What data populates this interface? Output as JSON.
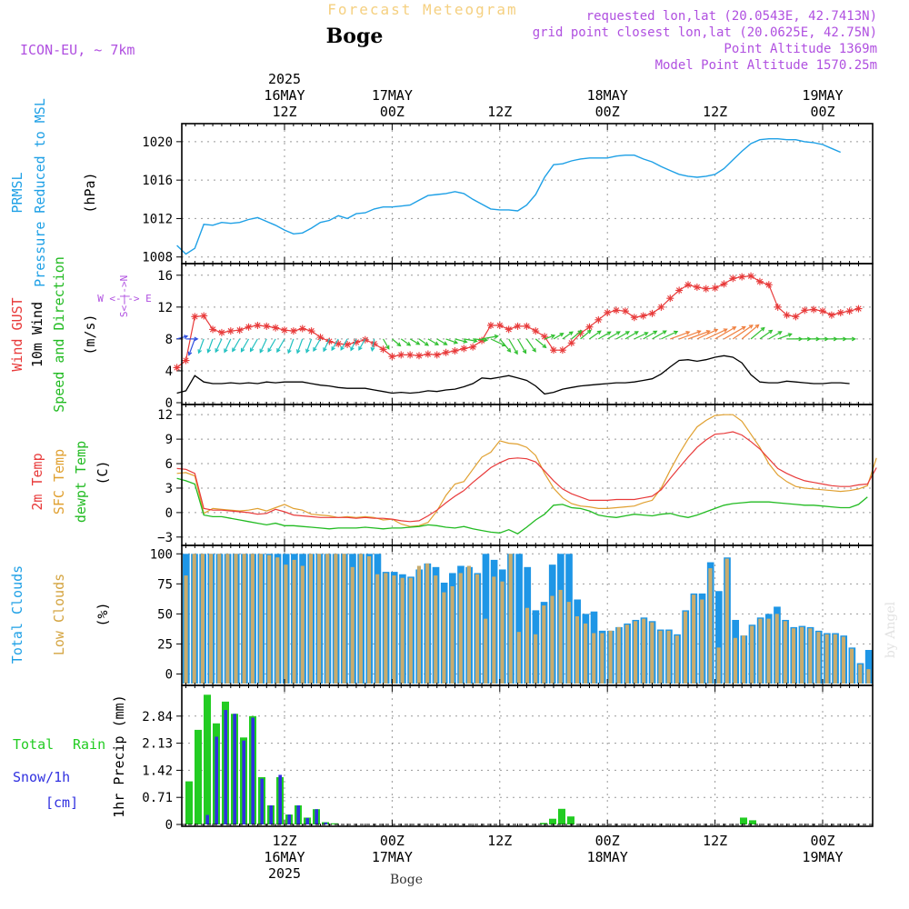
{
  "header": {
    "product": "Forecast Meteogram",
    "location": "Boge",
    "model": "ICON-EU, ~ 7km",
    "requested": "requested lon,lat (20.0543E, 42.7413N)",
    "gridpoint": "grid point closest lon,lat (20.0625E, 42.75N)",
    "point_altitude": "Point Altitude 1369m",
    "model_altitude": "Model Point Altitude 1570.25m",
    "footer": "Boge",
    "watermark": "by Angel"
  },
  "time_axis": {
    "top_labels": [
      {
        "hour": 12,
        "lines": [
          "2025",
          "16MAY",
          "12Z"
        ]
      },
      {
        "hour": 24,
        "lines": [
          "17MAY",
          "00Z"
        ]
      },
      {
        "hour": 36,
        "lines": [
          "12Z"
        ]
      },
      {
        "hour": 48,
        "lines": [
          "18MAY",
          "00Z"
        ]
      },
      {
        "hour": 60,
        "lines": [
          "12Z"
        ]
      },
      {
        "hour": 72,
        "lines": [
          "19MAY",
          "00Z"
        ]
      }
    ],
    "bottom_labels": [
      {
        "hour": 12,
        "lines": [
          "12Z",
          "16MAY",
          "2025"
        ]
      },
      {
        "hour": 24,
        "lines": [
          "00Z",
          "17MAY"
        ]
      },
      {
        "hour": 36,
        "lines": [
          "12Z"
        ]
      },
      {
        "hour": 48,
        "lines": [
          "00Z",
          "18MAY"
        ]
      },
      {
        "hour": 60,
        "lines": [
          "12Z"
        ]
      },
      {
        "hour": 72,
        "lines": [
          "00Z",
          "19MAY"
        ]
      }
    ]
  },
  "panels": {
    "pressure": {
      "label1": "PRMSL",
      "label2": "Pressure Reduced to MSL",
      "unit": "(hPa)"
    },
    "wind": {
      "label1": "Wind GUST",
      "label2": "10m Wind",
      "label3": "Speed and Direction",
      "unit": "(m/s)",
      "compass_ew": "W <-|-> E",
      "compass_ns": "S<-|->N"
    },
    "temp": {
      "label1": "2m Temp",
      "label2": "SFC Temp",
      "label3": "dewpt Temp",
      "unit": "(C)"
    },
    "clouds": {
      "label1": "Total Clouds",
      "label2": "Low Clouds",
      "unit": "(%)"
    },
    "precip": {
      "label1": "Total",
      "label1b": "Rain",
      "label2": "Snow/1h",
      "label3": "[cm]",
      "unit": "1hr Precip (mm)"
    }
  },
  "colors": {
    "pressure": "#1ea0e6",
    "gust": "#e83a3a",
    "wind": "#000000",
    "t2m": "#e83a3a",
    "tsfc": "#e0a030",
    "dewpt": "#22bb22",
    "total_clouds": "#1e96e6",
    "low_clouds": "#c8ac6e",
    "rain": "#22cc22",
    "snow": "#3030e0",
    "header_orange": "#f5d080",
    "header_purple": "#b050e0"
  },
  "chart_data": [
    {
      "type": "line",
      "title": "PRMSL Pressure Reduced to MSL",
      "ylabel": "(hPa)",
      "ylim": [
        1007.5,
        1021.5
      ],
      "yticks": [
        1008,
        1012,
        1016,
        1020
      ],
      "x_start_hour": 0,
      "x_step_hours": 1,
      "series": [
        {
          "name": "PRMSL",
          "values": [
            1009.2,
            1008.3,
            1008.9,
            1011.4,
            1011.3,
            1011.6,
            1011.5,
            1011.6,
            1011.9,
            1012.1,
            1011.7,
            1011.3,
            1010.8,
            1010.4,
            1010.5,
            1011.0,
            1011.6,
            1011.8,
            1012.3,
            1012.0,
            1012.5,
            1012.6,
            1013.0,
            1013.2,
            1013.2,
            1013.3,
            1013.4,
            1013.9,
            1014.4,
            1014.5,
            1014.6,
            1014.8,
            1014.6,
            1014.0,
            1013.5,
            1013.0,
            1012.9,
            1012.9,
            1012.8,
            1013.4,
            1014.5,
            1016.3,
            1017.6,
            1017.7,
            1018.0,
            1018.2,
            1018.3,
            1018.3,
            1018.3,
            1018.5,
            1018.6,
            1018.6,
            1018.2,
            1017.9,
            1017.4,
            1017.0,
            1016.6,
            1016.4,
            1016.3,
            1016.4,
            1016.6,
            1017.2,
            1018.1,
            1019.0,
            1019.8,
            1020.2,
            1020.3,
            1020.3,
            1020.2,
            1020.2,
            1020.0,
            1019.9,
            1019.7,
            1019.3,
            1018.9
          ]
        }
      ]
    },
    {
      "type": "line",
      "title": "Wind GUST / 10m Wind Speed and Direction",
      "ylabel": "(m/s)",
      "ylim": [
        0,
        17
      ],
      "yticks": [
        0,
        4,
        8,
        12,
        16
      ],
      "x_start_hour": 0,
      "x_step_hours": 1,
      "series": [
        {
          "name": "Wind GUST",
          "values": [
            4.4,
            5.3,
            10.8,
            10.9,
            9.2,
            8.8,
            9.0,
            9.1,
            9.5,
            9.7,
            9.6,
            9.4,
            9.1,
            9.0,
            9.3,
            9.0,
            8.2,
            7.7,
            7.4,
            7.3,
            7.6,
            7.9,
            7.4,
            6.7,
            5.8,
            6.0,
            6.0,
            5.9,
            6.1,
            6.0,
            6.3,
            6.5,
            6.8,
            7.0,
            7.8,
            9.7,
            9.7,
            9.2,
            9.6,
            9.6,
            9.0,
            8.3,
            6.6,
            6.6,
            7.5,
            8.7,
            9.5,
            10.4,
            11.3,
            11.6,
            11.5,
            10.7,
            10.9,
            11.2,
            12.0,
            13.1,
            14.1,
            14.8,
            14.5,
            14.3,
            14.4,
            14.9,
            15.6,
            15.8,
            15.9,
            15.2,
            14.8,
            12.0,
            11.0,
            10.8,
            11.6,
            11.7,
            11.5,
            11.0,
            11.3,
            11.5,
            11.8
          ]
        },
        {
          "name": "10m Wind",
          "values": [
            1.2,
            1.5,
            3.4,
            2.6,
            2.4,
            2.4,
            2.5,
            2.4,
            2.5,
            2.4,
            2.6,
            2.5,
            2.6,
            2.6,
            2.6,
            2.4,
            2.2,
            2.1,
            1.9,
            1.8,
            1.8,
            1.8,
            1.6,
            1.4,
            1.2,
            1.3,
            1.2,
            1.3,
            1.5,
            1.4,
            1.6,
            1.7,
            2.0,
            2.4,
            3.1,
            3.0,
            3.2,
            3.4,
            3.1,
            2.8,
            2.1,
            1.1,
            1.3,
            1.7,
            1.9,
            2.1,
            2.2,
            2.3,
            2.4,
            2.5,
            2.5,
            2.6,
            2.8,
            3.0,
            3.6,
            4.5,
            5.3,
            5.4,
            5.2,
            5.4,
            5.7,
            5.9,
            5.7,
            5.0,
            3.5,
            2.6,
            2.5,
            2.5,
            2.7,
            2.6,
            2.5,
            2.4,
            2.4,
            2.5,
            2.5,
            2.4
          ]
        }
      ]
    },
    {
      "type": "line",
      "title": "2m Temp / SFC Temp / dewpt Temp",
      "ylabel": "(C)",
      "ylim": [
        -3.8,
        12.8
      ],
      "yticks": [
        -3,
        0,
        3,
        6,
        9,
        12
      ],
      "x_start_hour": 0,
      "x_step_hours": 1,
      "series": [
        {
          "name": "2m Temp",
          "values": [
            5.4,
            5.3,
            4.8,
            0.5,
            0.3,
            0.3,
            0.2,
            0.1,
            0.0,
            -0.2,
            -0.1,
            0.4,
            0.1,
            -0.3,
            -0.4,
            -0.5,
            -0.6,
            -0.6,
            -0.6,
            -0.6,
            -0.7,
            -0.6,
            -0.7,
            -0.7,
            -0.8,
            -1.0,
            -1.1,
            -1.0,
            -0.4,
            0.3,
            1.2,
            2.0,
            2.7,
            3.7,
            4.6,
            5.5,
            6.1,
            6.6,
            6.7,
            6.6,
            6.2,
            5.1,
            3.9,
            2.9,
            2.3,
            1.9,
            1.5,
            1.5,
            1.5,
            1.6,
            1.6,
            1.6,
            1.8,
            2.0,
            2.8,
            4.2,
            5.5,
            6.8,
            8.0,
            8.9,
            9.6,
            9.7,
            9.9,
            9.5,
            8.7,
            7.8,
            6.6,
            5.4,
            4.8,
            4.3,
            3.9,
            3.7,
            3.5,
            3.3,
            3.2,
            3.2,
            3.4,
            3.5,
            5.5
          ]
        },
        {
          "name": "SFC Temp",
          "values": [
            4.8,
            4.9,
            4.5,
            -0.1,
            0.5,
            0.4,
            0.3,
            0.2,
            0.3,
            0.5,
            0.2,
            0.6,
            1.0,
            0.5,
            0.3,
            -0.2,
            -0.3,
            -0.4,
            -0.6,
            -0.5,
            -0.6,
            -0.5,
            -0.6,
            -0.9,
            -0.8,
            -1.4,
            -1.7,
            -1.6,
            -1.2,
            0.2,
            2.1,
            3.5,
            3.8,
            5.3,
            6.8,
            7.4,
            8.8,
            8.5,
            8.4,
            8.0,
            7.0,
            4.8,
            3.0,
            1.8,
            1.1,
            0.8,
            0.7,
            0.5,
            0.5,
            0.6,
            0.7,
            0.8,
            1.2,
            1.5,
            3.0,
            5.2,
            7.2,
            9.0,
            10.5,
            11.3,
            11.9,
            12.0,
            12.0,
            11.2,
            9.6,
            8.0,
            6.0,
            4.6,
            3.8,
            3.2,
            3.0,
            2.9,
            2.8,
            2.7,
            2.6,
            2.7,
            2.9,
            3.3,
            6.7
          ]
        },
        {
          "name": "dewpt Temp",
          "values": [
            4.2,
            3.9,
            3.5,
            -0.3,
            -0.5,
            -0.5,
            -0.7,
            -0.9,
            -1.1,
            -1.3,
            -1.5,
            -1.3,
            -1.6,
            -1.6,
            -1.7,
            -1.8,
            -1.9,
            -2.0,
            -1.9,
            -1.9,
            -1.9,
            -1.8,
            -1.9,
            -2.0,
            -1.9,
            -1.9,
            -1.8,
            -1.7,
            -1.5,
            -1.6,
            -1.8,
            -1.9,
            -1.7,
            -2.0,
            -2.2,
            -2.4,
            -2.5,
            -2.1,
            -2.6,
            -1.8,
            -0.9,
            -0.2,
            0.9,
            1.0,
            0.6,
            0.5,
            0.2,
            -0.3,
            -0.5,
            -0.6,
            -0.4,
            -0.2,
            -0.3,
            -0.4,
            -0.2,
            -0.1,
            -0.4,
            -0.6,
            -0.3,
            0.1,
            0.5,
            0.9,
            1.1,
            1.2,
            1.3,
            1.3,
            1.3,
            1.2,
            1.1,
            1.0,
            0.9,
            0.9,
            0.8,
            0.7,
            0.6,
            0.6,
            1.0,
            1.9
          ]
        }
      ]
    },
    {
      "type": "bar",
      "title": "Total Clouds / Low Clouds",
      "ylabel": "(%)",
      "ylim": [
        -8,
        104
      ],
      "yticks": [
        0,
        25,
        50,
        75,
        100
      ],
      "x_start_hour": 0,
      "x_step_hours": 1,
      "series": [
        {
          "name": "Total Clouds",
          "values": [
            100,
            100,
            100,
            100,
            100,
            100,
            100,
            100,
            100,
            100,
            100,
            100,
            100,
            100,
            100,
            100,
            100,
            100,
            100,
            100,
            100,
            100,
            100,
            100,
            85,
            85,
            83,
            81,
            87,
            92,
            89,
            76,
            84,
            90,
            89,
            84,
            100,
            95,
            87,
            100,
            100,
            89,
            53,
            60,
            91,
            100,
            100,
            62,
            50,
            52,
            36,
            36,
            39,
            42,
            45,
            47,
            44,
            37,
            37,
            33,
            53,
            67,
            67,
            93,
            69,
            97,
            45,
            32,
            41,
            47,
            50,
            56,
            45,
            39,
            40,
            39,
            36,
            34,
            34,
            32,
            22,
            9,
            20
          ]
        },
        {
          "name": "Low Clouds",
          "values": [
            82,
            100,
            100,
            100,
            100,
            100,
            100,
            100,
            100,
            100,
            99,
            97,
            91,
            95,
            90,
            100,
            100,
            100,
            100,
            100,
            89,
            100,
            98,
            83,
            84,
            82,
            80,
            80,
            90,
            92,
            82,
            68,
            73,
            84,
            90,
            83,
            46,
            81,
            77,
            100,
            35,
            55,
            33,
            57,
            65,
            70,
            60,
            48,
            42,
            34,
            34,
            36,
            39,
            41,
            44,
            46,
            43,
            36,
            36,
            32,
            52,
            66,
            62,
            88,
            22,
            96,
            30,
            32,
            40,
            46,
            46,
            50,
            44,
            38,
            39,
            38,
            35,
            33,
            33,
            31,
            21,
            8,
            4
          ]
        }
      ]
    },
    {
      "type": "bar",
      "title": "1hr Precip",
      "ylabel": "1hr Precip (mm)",
      "ylim": [
        0,
        3.55
      ],
      "yticks": [
        0,
        0.71,
        1.42,
        2.13,
        2.84
      ],
      "x_start_hour": 0,
      "x_step_hours": 1,
      "series": [
        {
          "name": "Total Rain",
          "values": [
            1.13,
            2.48,
            3.4,
            2.65,
            3.22,
            2.9,
            2.28,
            2.84,
            1.24,
            0.5,
            1.24,
            0.26,
            0.5,
            0.18,
            0.4,
            0.06,
            0.03,
            0,
            0,
            0,
            0,
            0,
            0,
            0,
            0,
            0,
            0,
            0,
            0,
            0,
            0,
            0,
            0,
            0,
            0,
            0,
            0,
            0,
            0,
            0.04,
            0.15,
            0.41,
            0.21,
            0,
            0,
            0,
            0,
            0,
            0,
            0,
            0,
            0,
            0,
            0,
            0,
            0,
            0,
            0,
            0,
            0,
            0,
            0.18,
            0.11,
            0,
            0,
            0,
            0,
            0,
            0,
            0,
            0,
            0,
            0,
            0,
            0,
            0
          ]
        },
        {
          "name": "Snow/1h",
          "values": [
            0,
            0,
            0.25,
            2.3,
            3.0,
            2.9,
            2.2,
            2.8,
            1.2,
            0.5,
            1.3,
            0.26,
            0.5,
            0.17,
            0.4,
            0.05,
            0,
            0,
            0,
            0,
            0,
            0,
            0,
            0,
            0,
            0,
            0,
            0,
            0,
            0,
            0,
            0,
            0,
            0,
            0,
            0,
            0,
            0,
            0,
            0,
            0,
            0,
            0,
            0,
            0,
            0,
            0,
            0,
            0,
            0,
            0,
            0,
            0,
            0,
            0,
            0,
            0,
            0,
            0,
            0,
            0,
            0,
            0,
            0,
            0,
            0,
            0,
            0,
            0,
            0,
            0,
            0,
            0,
            0,
            0,
            0
          ]
        }
      ]
    },
    {
      "type": "wind_barbs",
      "title": "10m Wind Direction (direction wind blows toward, degrees)",
      "x_start_hour": 0,
      "x_step_hours": 1,
      "directions_deg": [
        75,
        90,
        200,
        200,
        200,
        205,
        205,
        210,
        210,
        210,
        205,
        210,
        210,
        200,
        200,
        200,
        210,
        205,
        210,
        210,
        205,
        210,
        190,
        150,
        130,
        125,
        120,
        125,
        120,
        120,
        110,
        105,
        100,
        95,
        80,
        115,
        140,
        150,
        150,
        145,
        130,
        70,
        60,
        55,
        50,
        50,
        55,
        60,
        60,
        60,
        60,
        65,
        60,
        60,
        65,
        70,
        70,
        70,
        65,
        65,
        60,
        60,
        55,
        50,
        50,
        55,
        60,
        70,
        90,
        90,
        90,
        90,
        90,
        90,
        90
      ]
    }
  ]
}
